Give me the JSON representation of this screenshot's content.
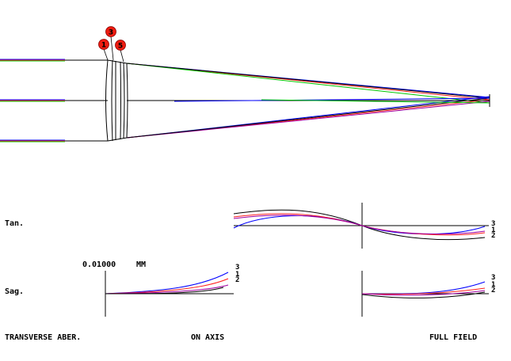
{
  "colors": {
    "background": "#ffffff",
    "ink": "#000000",
    "wavelength_1": "#ff2020",
    "wavelength_2": "#00c800",
    "wavelength_3": "#0000ff",
    "extra_ray": "#a000a0",
    "marker_fill": "#ee1c10"
  },
  "markers": [
    "1",
    "3",
    "5"
  ],
  "plot_labels": {
    "tan": "Tan.",
    "sag": "Sag.",
    "scale_value": "0.01000",
    "scale_unit": "MM",
    "title": "TRANSVERSE ABER.",
    "on_axis": "ON AXIS",
    "full_field": "FULL FIELD"
  },
  "curve_keys": {
    "tan_full": [
      "3",
      "1",
      "2"
    ],
    "sag_axis": [
      "3",
      "1",
      "2"
    ],
    "sag_full": [
      "3",
      "1",
      "2"
    ]
  }
}
